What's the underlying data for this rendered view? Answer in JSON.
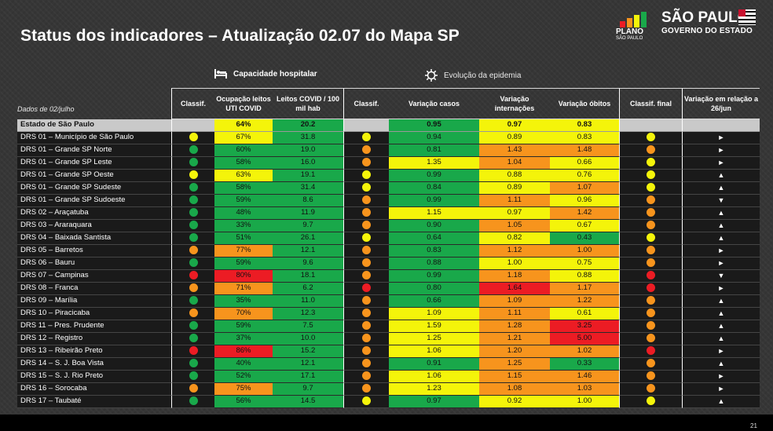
{
  "title": "Status dos indicadores – Atualização 02.07 do Mapa SP",
  "logos": {
    "plano_line1": "PLANO",
    "plano_line2": "SÃO PAULO",
    "sp_line1": "SÃO PAULO",
    "sp_line2": "GOVERNO DO ESTADO"
  },
  "sections": {
    "hospital": "Capacidade hospitalar",
    "epidemia": "Evolução da epidemia"
  },
  "headers": {
    "date": "Dados de 02/julho",
    "classif1": "Classif.",
    "ocupacao": "Ocupação leitos UTI COVID",
    "leitos": "Leitos COVID / 100 mil hab",
    "classif2": "Classif.",
    "var_casos": "Variação casos",
    "var_intern": "Variação internações",
    "var_obitos": "Variação óbitos",
    "classif_final": "Classif. final",
    "var_26": "Variação em relação a 26/jun"
  },
  "state_row": {
    "name": "Estado de São Paulo",
    "ocupacao": "64%",
    "leitos": "20.2",
    "var_casos": "0.95",
    "var_intern": "0.97",
    "var_obitos": "0.83"
  },
  "rows": [
    {
      "name": "DRS 01 – Município de São Paulo",
      "c1": "yellow",
      "ocup": "67%",
      "ocup_c": "yellow",
      "leitos": "31.8",
      "leitos_c": "green",
      "c2": "yellow",
      "casos": "0.94",
      "casos_c": "green",
      "intern": "0.89",
      "intern_c": "yellow",
      "obitos": "0.83",
      "obitos_c": "yellow",
      "cf": "yellow",
      "arrow": "►"
    },
    {
      "name": "DRS 01 – Grande SP Norte",
      "c1": "green",
      "ocup": "60%",
      "ocup_c": "green",
      "leitos": "19.0",
      "leitos_c": "green",
      "c2": "orange",
      "casos": "0.81",
      "casos_c": "green",
      "intern": "1.43",
      "intern_c": "orange",
      "obitos": "1.48",
      "obitos_c": "orange",
      "cf": "orange",
      "arrow": "►"
    },
    {
      "name": "DRS 01 – Grande SP Leste",
      "c1": "green",
      "ocup": "58%",
      "ocup_c": "green",
      "leitos": "16.0",
      "leitos_c": "green",
      "c2": "orange",
      "casos": "1.35",
      "casos_c": "yellow",
      "intern": "1.04",
      "intern_c": "orange",
      "obitos": "0.66",
      "obitos_c": "yellow",
      "cf": "yellow",
      "arrow": "►"
    },
    {
      "name": "DRS 01 – Grande SP Oeste",
      "c1": "yellow",
      "ocup": "63%",
      "ocup_c": "yellow",
      "leitos": "19.1",
      "leitos_c": "green",
      "c2": "yellow",
      "casos": "0.99",
      "casos_c": "green",
      "intern": "0.88",
      "intern_c": "yellow",
      "obitos": "0.76",
      "obitos_c": "yellow",
      "cf": "yellow",
      "arrow": "▲"
    },
    {
      "name": "DRS 01 – Grande SP Sudeste",
      "c1": "green",
      "ocup": "58%",
      "ocup_c": "green",
      "leitos": "31.4",
      "leitos_c": "green",
      "c2": "yellow",
      "casos": "0.84",
      "casos_c": "green",
      "intern": "0.89",
      "intern_c": "yellow",
      "obitos": "1.07",
      "obitos_c": "orange",
      "cf": "yellow",
      "arrow": "▲"
    },
    {
      "name": "DRS 01 – Grande SP Sudoeste",
      "c1": "green",
      "ocup": "59%",
      "ocup_c": "green",
      "leitos": "8.6",
      "leitos_c": "green",
      "c2": "orange",
      "casos": "0.99",
      "casos_c": "green",
      "intern": "1.11",
      "intern_c": "orange",
      "obitos": "0.96",
      "obitos_c": "yellow",
      "cf": "orange",
      "arrow": "▼"
    },
    {
      "name": "DRS 02 – Araçatuba",
      "c1": "green",
      "ocup": "48%",
      "ocup_c": "green",
      "leitos": "11.9",
      "leitos_c": "green",
      "c2": "orange",
      "casos": "1.15",
      "casos_c": "yellow",
      "intern": "0.97",
      "intern_c": "yellow",
      "obitos": "1.42",
      "obitos_c": "orange",
      "cf": "orange",
      "arrow": "▲"
    },
    {
      "name": "DRS 03 – Araraquara",
      "c1": "green",
      "ocup": "33%",
      "ocup_c": "green",
      "leitos": "9.7",
      "leitos_c": "green",
      "c2": "orange",
      "casos": "0.90",
      "casos_c": "green",
      "intern": "1.05",
      "intern_c": "orange",
      "obitos": "0.67",
      "obitos_c": "yellow",
      "cf": "orange",
      "arrow": "▲"
    },
    {
      "name": "DRS 04 – Baixada Santista",
      "c1": "green",
      "ocup": "51%",
      "ocup_c": "green",
      "leitos": "26.1",
      "leitos_c": "green",
      "c2": "yellow",
      "casos": "0.64",
      "casos_c": "green",
      "intern": "0.82",
      "intern_c": "yellow",
      "obitos": "0.43",
      "obitos_c": "green",
      "cf": "yellow",
      "arrow": "▲"
    },
    {
      "name": "DRS 05 – Barretos",
      "c1": "orange",
      "ocup": "77%",
      "ocup_c": "orange",
      "leitos": "12.1",
      "leitos_c": "green",
      "c2": "orange",
      "casos": "0.83",
      "casos_c": "green",
      "intern": "1.12",
      "intern_c": "orange",
      "obitos": "1.00",
      "obitos_c": "orange",
      "cf": "orange",
      "arrow": "►"
    },
    {
      "name": "DRS 06 – Bauru",
      "c1": "green",
      "ocup": "59%",
      "ocup_c": "green",
      "leitos": "9.6",
      "leitos_c": "green",
      "c2": "orange",
      "casos": "0.88",
      "casos_c": "green",
      "intern": "1.00",
      "intern_c": "yellow",
      "obitos": "0.75",
      "obitos_c": "yellow",
      "cf": "orange",
      "arrow": "►"
    },
    {
      "name": "DRS 07 – Campinas",
      "c1": "red",
      "ocup": "80%",
      "ocup_c": "red",
      "leitos": "18.1",
      "leitos_c": "green",
      "c2": "orange",
      "casos": "0.99",
      "casos_c": "green",
      "intern": "1.18",
      "intern_c": "orange",
      "obitos": "0.88",
      "obitos_c": "yellow",
      "cf": "red",
      "arrow": "▼"
    },
    {
      "name": "DRS 08 – Franca",
      "c1": "orange",
      "ocup": "71%",
      "ocup_c": "orange",
      "leitos": "6.2",
      "leitos_c": "green",
      "c2": "red",
      "casos": "0.80",
      "casos_c": "green",
      "intern": "1.64",
      "intern_c": "red",
      "obitos": "1.17",
      "obitos_c": "orange",
      "cf": "red",
      "arrow": "►"
    },
    {
      "name": "DRS 09 – Marília",
      "c1": "green",
      "ocup": "35%",
      "ocup_c": "green",
      "leitos": "11.0",
      "leitos_c": "green",
      "c2": "orange",
      "casos": "0.66",
      "casos_c": "green",
      "intern": "1.09",
      "intern_c": "orange",
      "obitos": "1.22",
      "obitos_c": "orange",
      "cf": "orange",
      "arrow": "▲"
    },
    {
      "name": "DRS 10 – Piracicaba",
      "c1": "orange",
      "ocup": "70%",
      "ocup_c": "orange",
      "leitos": "12.3",
      "leitos_c": "green",
      "c2": "orange",
      "casos": "1.09",
      "casos_c": "yellow",
      "intern": "1.11",
      "intern_c": "orange",
      "obitos": "0.61",
      "obitos_c": "yellow",
      "cf": "orange",
      "arrow": "▲"
    },
    {
      "name": "DRS 11 – Pres. Prudente",
      "c1": "green",
      "ocup": "59%",
      "ocup_c": "green",
      "leitos": "7.5",
      "leitos_c": "green",
      "c2": "orange",
      "casos": "1.59",
      "casos_c": "yellow",
      "intern": "1.28",
      "intern_c": "orange",
      "obitos": "3.25",
      "obitos_c": "red",
      "cf": "orange",
      "arrow": "▲"
    },
    {
      "name": "DRS 12 – Registro",
      "c1": "green",
      "ocup": "37%",
      "ocup_c": "green",
      "leitos": "10.0",
      "leitos_c": "green",
      "c2": "orange",
      "casos": "1.25",
      "casos_c": "yellow",
      "intern": "1.21",
      "intern_c": "orange",
      "obitos": "5.00",
      "obitos_c": "red",
      "cf": "orange",
      "arrow": "▲"
    },
    {
      "name": "DRS 13 – Ribeirão Preto",
      "c1": "red",
      "ocup": "86%",
      "ocup_c": "red",
      "leitos": "15.2",
      "leitos_c": "green",
      "c2": "orange",
      "casos": "1.06",
      "casos_c": "yellow",
      "intern": "1.20",
      "intern_c": "orange",
      "obitos": "1.02",
      "obitos_c": "orange",
      "cf": "red",
      "arrow": "►"
    },
    {
      "name": "DRS 14 – S. J. Boa Vista",
      "c1": "green",
      "ocup": "40%",
      "ocup_c": "green",
      "leitos": "12.1",
      "leitos_c": "green",
      "c2": "orange",
      "casos": "0.91",
      "casos_c": "green",
      "intern": "1.25",
      "intern_c": "orange",
      "obitos": "0.33",
      "obitos_c": "green",
      "cf": "orange",
      "arrow": "▲"
    },
    {
      "name": "DRS 15 – S. J. Rio Preto",
      "c1": "green",
      "ocup": "52%",
      "ocup_c": "green",
      "leitos": "17.1",
      "leitos_c": "green",
      "c2": "orange",
      "casos": "1.06",
      "casos_c": "yellow",
      "intern": "1.15",
      "intern_c": "orange",
      "obitos": "1.46",
      "obitos_c": "orange",
      "cf": "orange",
      "arrow": "►"
    },
    {
      "name": "DRS 16 – Sorocaba",
      "c1": "orange",
      "ocup": "75%",
      "ocup_c": "orange",
      "leitos": "9.7",
      "leitos_c": "green",
      "c2": "orange",
      "casos": "1.23",
      "casos_c": "yellow",
      "intern": "1.08",
      "intern_c": "orange",
      "obitos": "1.03",
      "obitos_c": "orange",
      "cf": "orange",
      "arrow": "►"
    },
    {
      "name": "DRS 17 – Taubaté",
      "c1": "green",
      "ocup": "56%",
      "ocup_c": "green",
      "leitos": "14.5",
      "leitos_c": "green",
      "c2": "yellow",
      "casos": "0.97",
      "casos_c": "green",
      "intern": "0.92",
      "intern_c": "yellow",
      "obitos": "1.00",
      "obitos_c": "yellow",
      "cf": "yellow",
      "arrow": "▲"
    }
  ],
  "page_number": "21",
  "colors": {
    "green": "#19a84a",
    "yellow": "#f4f40a",
    "orange": "#f7941d",
    "red": "#ec1c24"
  }
}
